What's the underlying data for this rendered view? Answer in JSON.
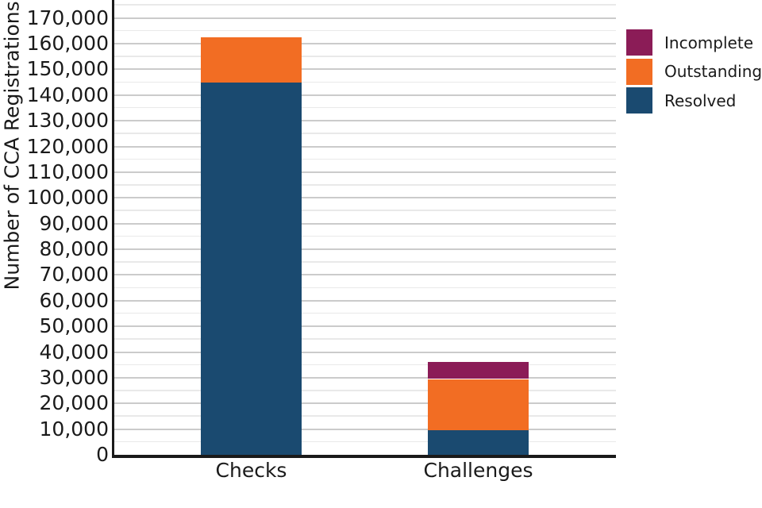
{
  "figure": {
    "background": "#ffffff",
    "text_color": "#1a1a1a"
  },
  "y_axis": {
    "label": "Number of CCA Registrations",
    "ticks": [
      {
        "value": 0,
        "label": "0"
      },
      {
        "value": 10000,
        "label": "10,000"
      },
      {
        "value": 20000,
        "label": "20,000"
      },
      {
        "value": 30000,
        "label": "30,000"
      },
      {
        "value": 40000,
        "label": "40,000"
      },
      {
        "value": 50000,
        "label": "50,000"
      },
      {
        "value": 60000,
        "label": "60,000"
      },
      {
        "value": 70000,
        "label": "70,000"
      },
      {
        "value": 80000,
        "label": "80,000"
      },
      {
        "value": 90000,
        "label": "90,000"
      },
      {
        "value": 100000,
        "label": "100,000"
      },
      {
        "value": 110000,
        "label": "110,000"
      },
      {
        "value": 120000,
        "label": "120,000"
      },
      {
        "value": 130000,
        "label": "130,000"
      },
      {
        "value": 140000,
        "label": "140,000"
      },
      {
        "value": 150000,
        "label": "150,000"
      },
      {
        "value": 160000,
        "label": "160,000"
      },
      {
        "value": 170000,
        "label": "170,000"
      }
    ],
    "minor_step": 5000,
    "minor_max": 175000
  },
  "x_axis": {
    "categories": [
      "Checks",
      "Challenges"
    ]
  },
  "legend": {
    "items": [
      {
        "label": "Incomplete",
        "color": "#8B1C57"
      },
      {
        "label": "Outstanding",
        "color": "#F26D23"
      },
      {
        "label": "Resolved",
        "color": "#1A4A70"
      }
    ]
  },
  "grid_colors": {
    "major": "#cbcbcb",
    "minor": "#e9e9e9"
  },
  "chart_data": {
    "type": "bar",
    "stacked": true,
    "title": "",
    "xlabel": "",
    "ylabel": "Number of CCA Registrations",
    "categories": [
      "Checks",
      "Challenges"
    ],
    "series": [
      {
        "name": "Resolved",
        "color": "#1A4A70",
        "values": [
          145000,
          9500
        ]
      },
      {
        "name": "Outstanding",
        "color": "#F26D23",
        "values": [
          17500,
          20000
        ]
      },
      {
        "name": "Incomplete",
        "color": "#8B1C57",
        "values": [
          0,
          6500
        ]
      }
    ],
    "totals": [
      162500,
      36000
    ],
    "ylim": [
      0,
      177000
    ],
    "ytick_step": 10000,
    "grid": true,
    "legend_position": "upper right outside"
  }
}
